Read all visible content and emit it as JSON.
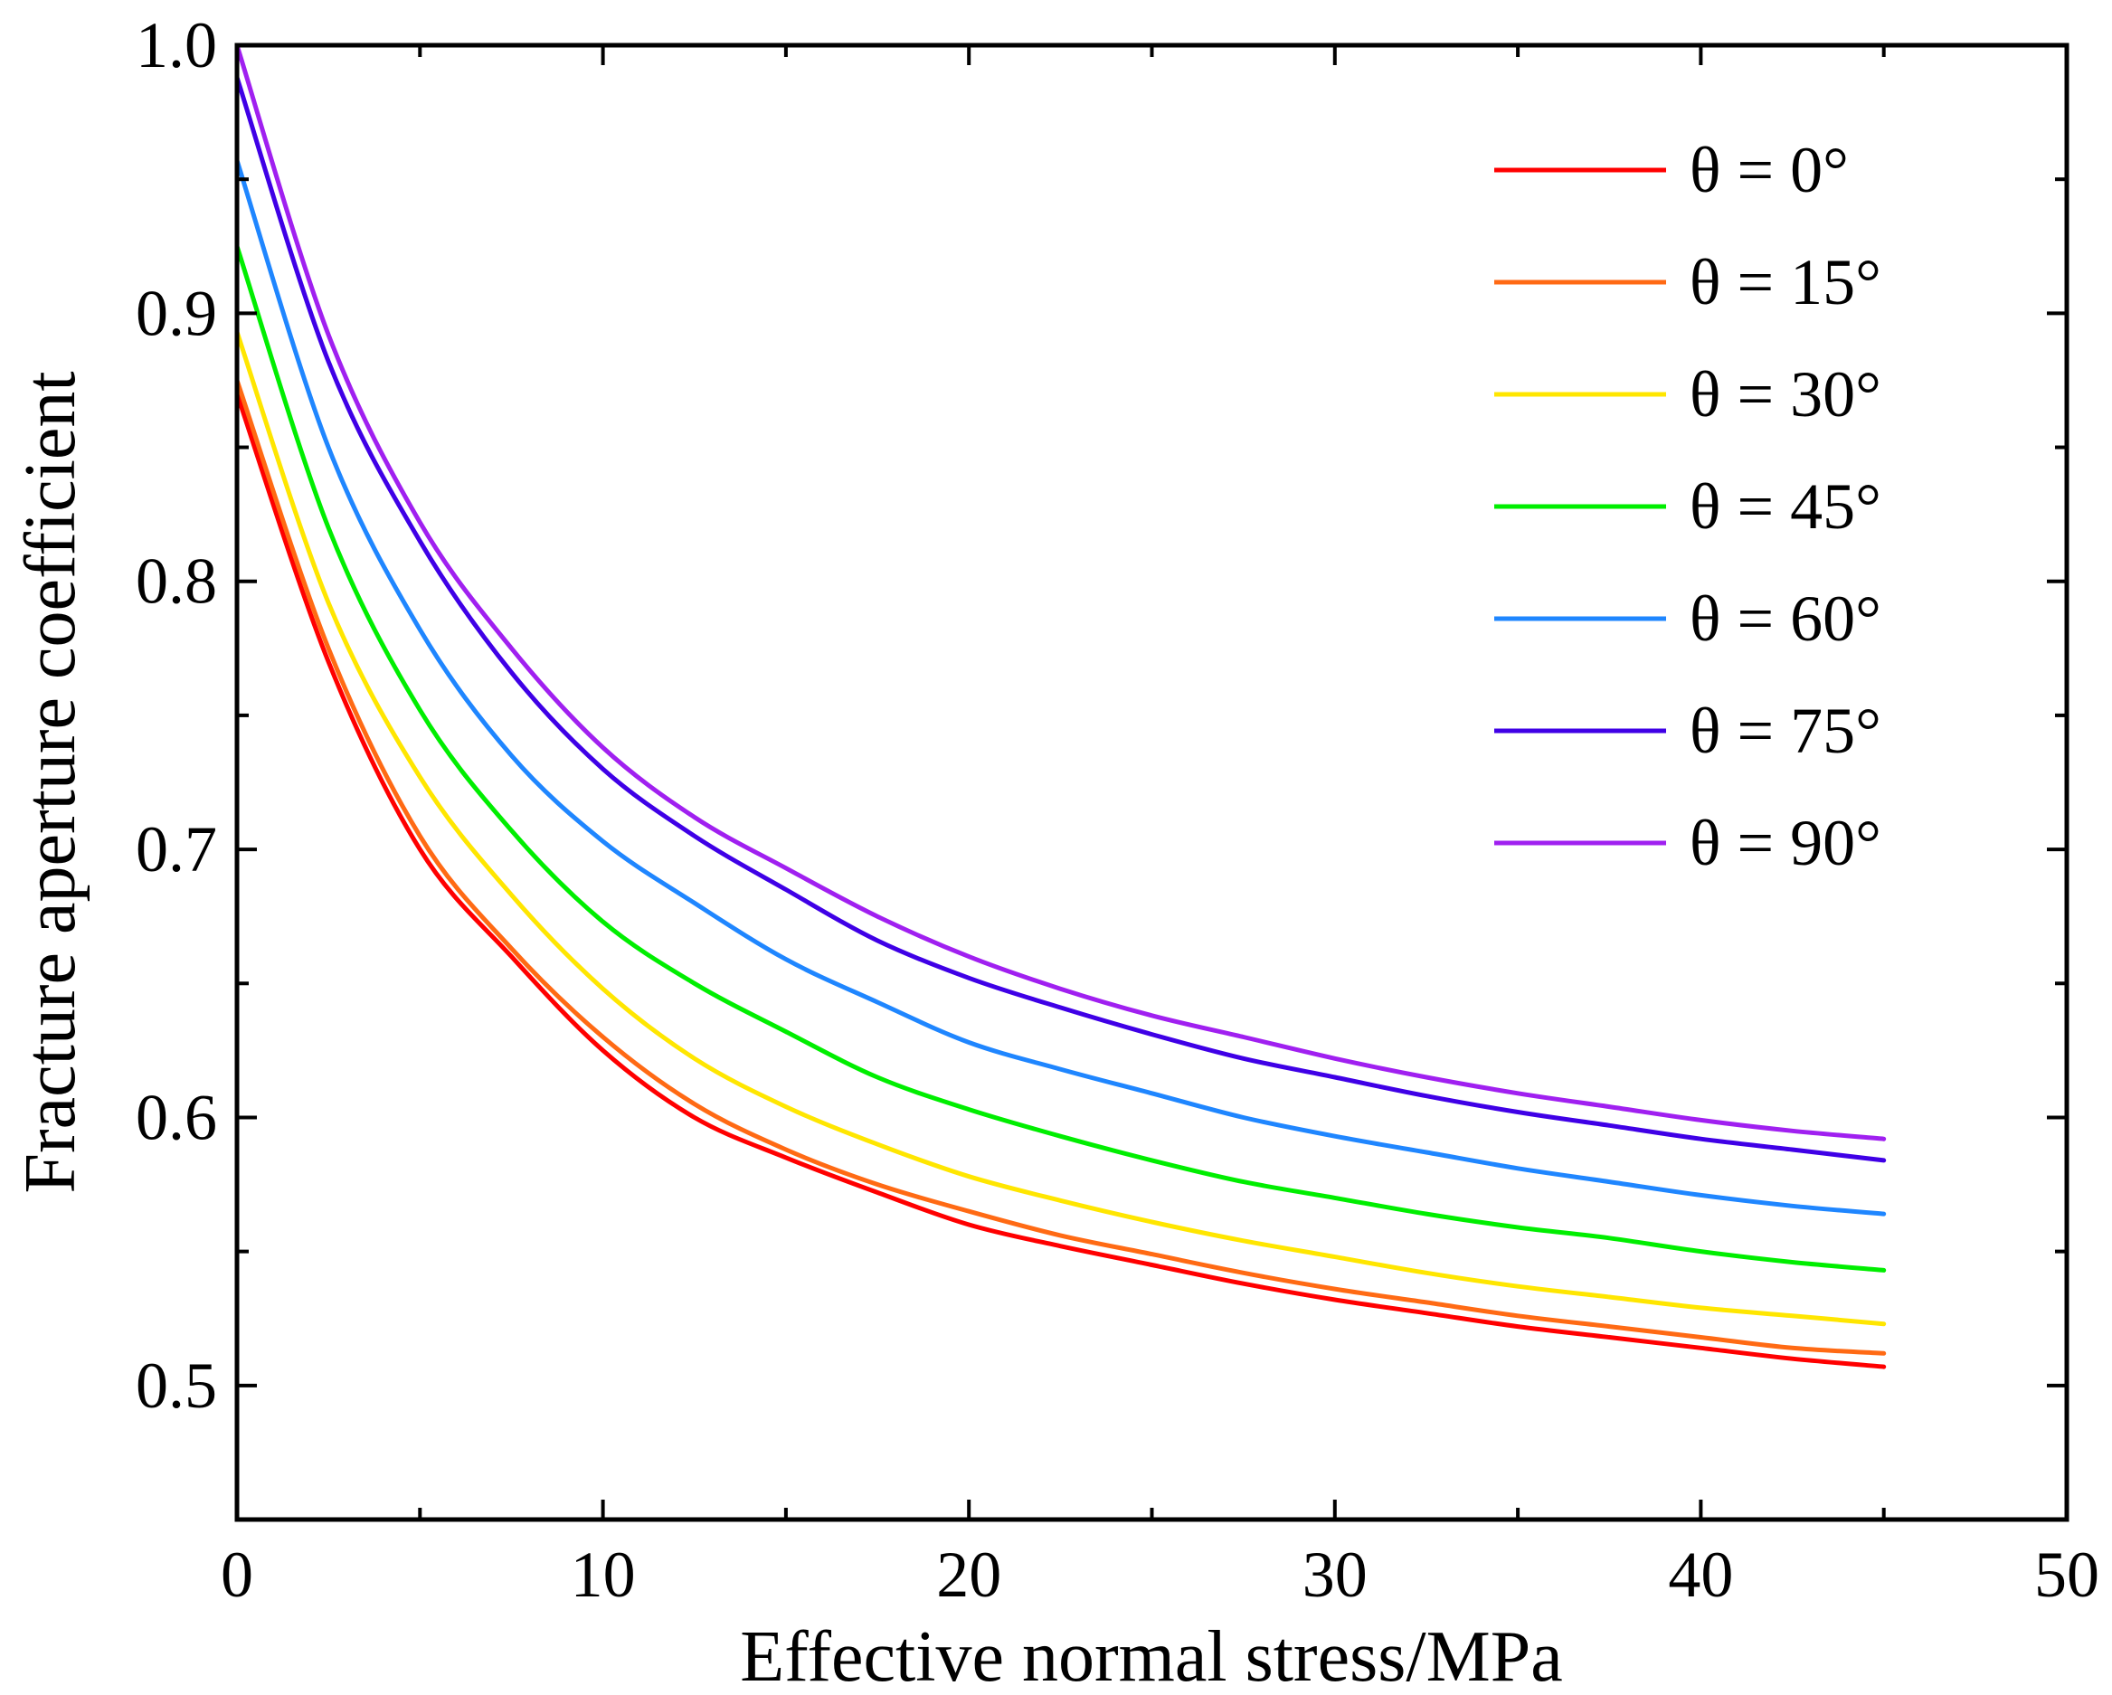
{
  "chart_data": {
    "type": "line",
    "title": "",
    "xlabel": "Effective normal stress/MPa",
    "ylabel": "Fracture aperture coefficient",
    "xlim": [
      0,
      50
    ],
    "ylim": [
      0.45,
      1.0
    ],
    "xticks": [
      0,
      10,
      20,
      30,
      40,
      50
    ],
    "xtick_labels": [
      "0",
      "10",
      "20",
      "30",
      "40",
      "50"
    ],
    "yticks": [
      0.5,
      0.6,
      0.7,
      0.8,
      0.9,
      1.0
    ],
    "ytick_labels": [
      "0.5",
      "0.6",
      "0.7",
      "0.8",
      "0.9",
      "1.0"
    ],
    "grid": false,
    "legend_position": "top-right",
    "x": [
      0,
      2.5,
      5,
      7.5,
      10,
      12.5,
      15,
      17.5,
      20,
      22.5,
      25,
      27.5,
      30,
      32.5,
      35,
      37.5,
      40,
      42.5,
      45
    ],
    "series": [
      {
        "name": "θ = 0°",
        "color": "#ff0000",
        "values": [
          0.87,
          0.77,
          0.7,
          0.66,
          0.625,
          0.6,
          0.585,
          0.572,
          0.56,
          0.552,
          0.545,
          0.538,
          0.532,
          0.527,
          0.522,
          0.518,
          0.514,
          0.51,
          0.507
        ]
      },
      {
        "name": "θ = 15°",
        "color": "#ff6a14",
        "values": [
          0.875,
          0.775,
          0.705,
          0.663,
          0.63,
          0.605,
          0.588,
          0.575,
          0.565,
          0.556,
          0.549,
          0.542,
          0.536,
          0.531,
          0.526,
          0.522,
          0.518,
          0.514,
          0.512
        ]
      },
      {
        "name": "θ = 30°",
        "color": "#ffe600",
        "values": [
          0.893,
          0.792,
          0.727,
          0.683,
          0.648,
          0.622,
          0.604,
          0.59,
          0.578,
          0.569,
          0.561,
          0.554,
          0.548,
          0.542,
          0.537,
          0.533,
          0.529,
          0.526,
          0.523
        ]
      },
      {
        "name": "θ = 45°",
        "color": "#00ee00",
        "values": [
          0.925,
          0.82,
          0.752,
          0.707,
          0.673,
          0.65,
          0.632,
          0.615,
          0.603,
          0.593,
          0.584,
          0.576,
          0.57,
          0.564,
          0.559,
          0.555,
          0.55,
          0.546,
          0.543
        ]
      },
      {
        "name": "θ = 60°",
        "color": "#1f86ff",
        "values": [
          0.957,
          0.85,
          0.782,
          0.735,
          0.703,
          0.68,
          0.659,
          0.643,
          0.628,
          0.618,
          0.609,
          0.6,
          0.593,
          0.587,
          0.581,
          0.576,
          0.571,
          0.567,
          0.564
        ]
      },
      {
        "name": "θ = 75°",
        "color": "#3f00e6",
        "values": [
          0.988,
          0.882,
          0.815,
          0.766,
          0.73,
          0.705,
          0.685,
          0.666,
          0.652,
          0.641,
          0.631,
          0.622,
          0.615,
          0.608,
          0.602,
          0.597,
          0.592,
          0.588,
          0.584
        ]
      },
      {
        "name": "θ = 90°",
        "color": "#a020f0",
        "values": [
          1.0,
          0.892,
          0.822,
          0.775,
          0.738,
          0.712,
          0.693,
          0.675,
          0.66,
          0.648,
          0.638,
          0.63,
          0.622,
          0.615,
          0.609,
          0.604,
          0.599,
          0.595,
          0.592
        ]
      }
    ]
  }
}
